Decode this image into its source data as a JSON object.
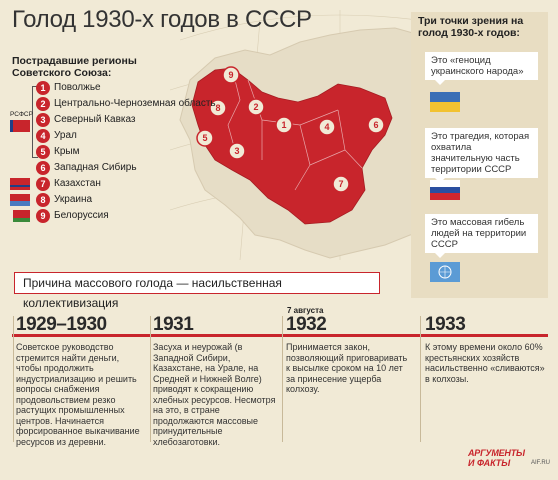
{
  "title": "Голод 1930-х годов в СССР",
  "regions_title": "Пострадавшие регионы Советского Союза:",
  "rsfsr_label": "РСФСР",
  "regions": [
    {
      "num": "1",
      "label": "Поволжье"
    },
    {
      "num": "2",
      "label": "Центрально-Черноземная область"
    },
    {
      "num": "3",
      "label": "Северный Кавказ"
    },
    {
      "num": "4",
      "label": "Урал"
    },
    {
      "num": "5",
      "label": "Крым"
    },
    {
      "num": "6",
      "label": "Западная Сибирь"
    },
    {
      "num": "7",
      "label": "Казахстан"
    },
    {
      "num": "8",
      "label": "Украина"
    },
    {
      "num": "9",
      "label": "Белоруссия"
    }
  ],
  "map_labels": [
    "1",
    "2",
    "3",
    "4",
    "5",
    "6",
    "7",
    "8",
    "9"
  ],
  "panel": {
    "title": "Три точки зрения на голод 1930-х годов:",
    "views": [
      {
        "text": "Это «геноцид украинского народа»",
        "flag": "ukraine-flag"
      },
      {
        "text": "Это трагедия, которая охватила значительную часть территории СССР",
        "flag": "russia-flag"
      },
      {
        "text": "Это массовая гибель людей на территории СССР",
        "flag": "un-flag"
      }
    ]
  },
  "cause": "Причина массового голода — насильственная коллективизация",
  "timeline": [
    {
      "year": "1929–1930",
      "sub": "",
      "text": "Советское руководство стремится найти деньги, чтобы продолжить индустриализацию и решить вопросы снабжения продовольствием резко растущих промышленных центров. Начинается форсированное выкачивание ресурсов из деревни."
    },
    {
      "year": "1931",
      "sub": "",
      "text": "Засуха и неурожай (в Западной Сибири, Казахстане, на Урале, на Средней и Нижней Волге) приводят к сокращению хлебных ресурсов. Несмотря на это, в стране продолжаются массовые принудительные хлебозаготовки."
    },
    {
      "year": "1932",
      "sub": "7 августа",
      "text": "Принимается закон, позволяющий приговаривать к высылке сроком на 10 лет за принесение ущерба колхозу."
    },
    {
      "year": "1933",
      "sub": "",
      "text": "К этому времени около 60% крестьянских хозяйств насильственно «сливаются» в колхозы."
    }
  ],
  "logo": {
    "line1": "АРГУМЕНТЫ",
    "line2": "И ФАКТЫ",
    "url": "AIF.RU"
  },
  "colors": {
    "accent": "#c8252c",
    "background": "#f1ead6",
    "map_land": "#e6ddc6",
    "panel": "#e8ddc2"
  }
}
